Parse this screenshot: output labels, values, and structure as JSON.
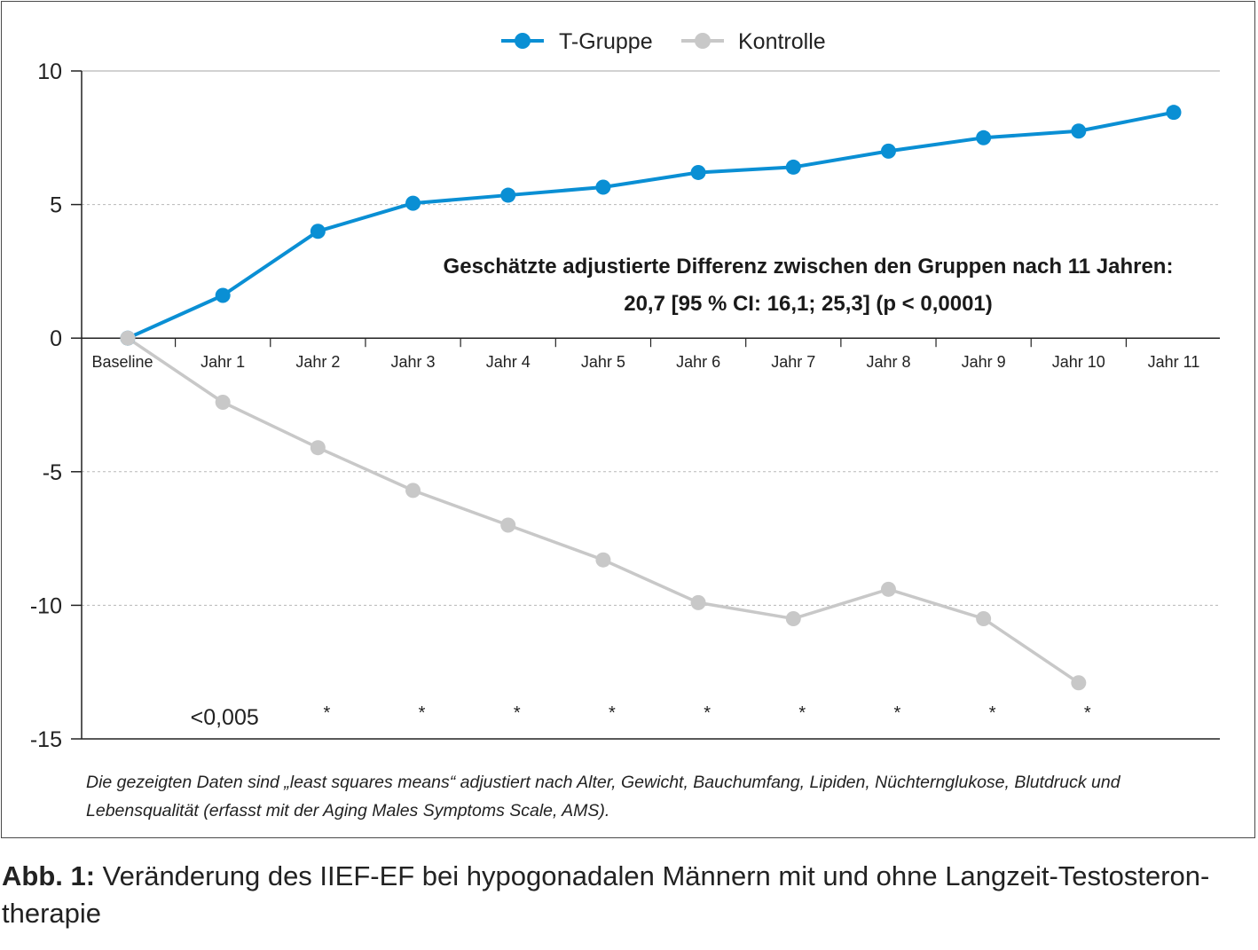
{
  "chart_data": {
    "type": "line",
    "categories": [
      "Baseline",
      "Jahr 1",
      "Jahr 2",
      "Jahr 3",
      "Jahr 4",
      "Jahr 5",
      "Jahr 6",
      "Jahr 7",
      "Jahr 8",
      "Jahr 9",
      "Jahr 10",
      "Jahr 11"
    ],
    "series": [
      {
        "name": "T-Gruppe",
        "color": "#0a8fd4",
        "values": [
          0,
          1.6,
          4.0,
          5.05,
          5.35,
          5.65,
          6.2,
          6.4,
          7.0,
          7.5,
          7.75,
          8.45
        ]
      },
      {
        "name": "Kontrolle",
        "color": "#c8c8c8",
        "values": [
          0,
          -2.4,
          -4.1,
          -5.7,
          -7.0,
          -8.3,
          -9.9,
          -10.5,
          -9.4,
          -10.5,
          -12.9,
          null
        ]
      }
    ],
    "ylim": [
      -15,
      10
    ],
    "yticks": [
      "10",
      "5",
      "0",
      "-5",
      "-10",
      "-15"
    ],
    "grid": "horizontal dashed",
    "legend": "top-center",
    "annotation_line1": "Geschätzte adjustierte Differenz zwischen den Gruppen nach 11 Jahren:",
    "annotation_line2": "20,7 [95 % CI: 16,1; 25,3] (p < 0,0001)",
    "significance": [
      "<0,005",
      "*",
      "*",
      "*",
      "*",
      "*",
      "*",
      "*",
      "*",
      "*"
    ]
  },
  "footnote": "Die gezeigten Daten sind „least squares means“ adjustiert nach Alter, Gewicht, Bauchumfang, Lipiden, Nüchternglukose, Blutdruck und Lebensqualität (erfasst mit der Aging Males Symptoms Scale, AMS).",
  "caption": {
    "lead": "Abb. 1:",
    "text": " Veränderung des IIEF-EF bei hypogonadalen Männern mit und ohne Langzeit-Testosteron-therapie"
  }
}
